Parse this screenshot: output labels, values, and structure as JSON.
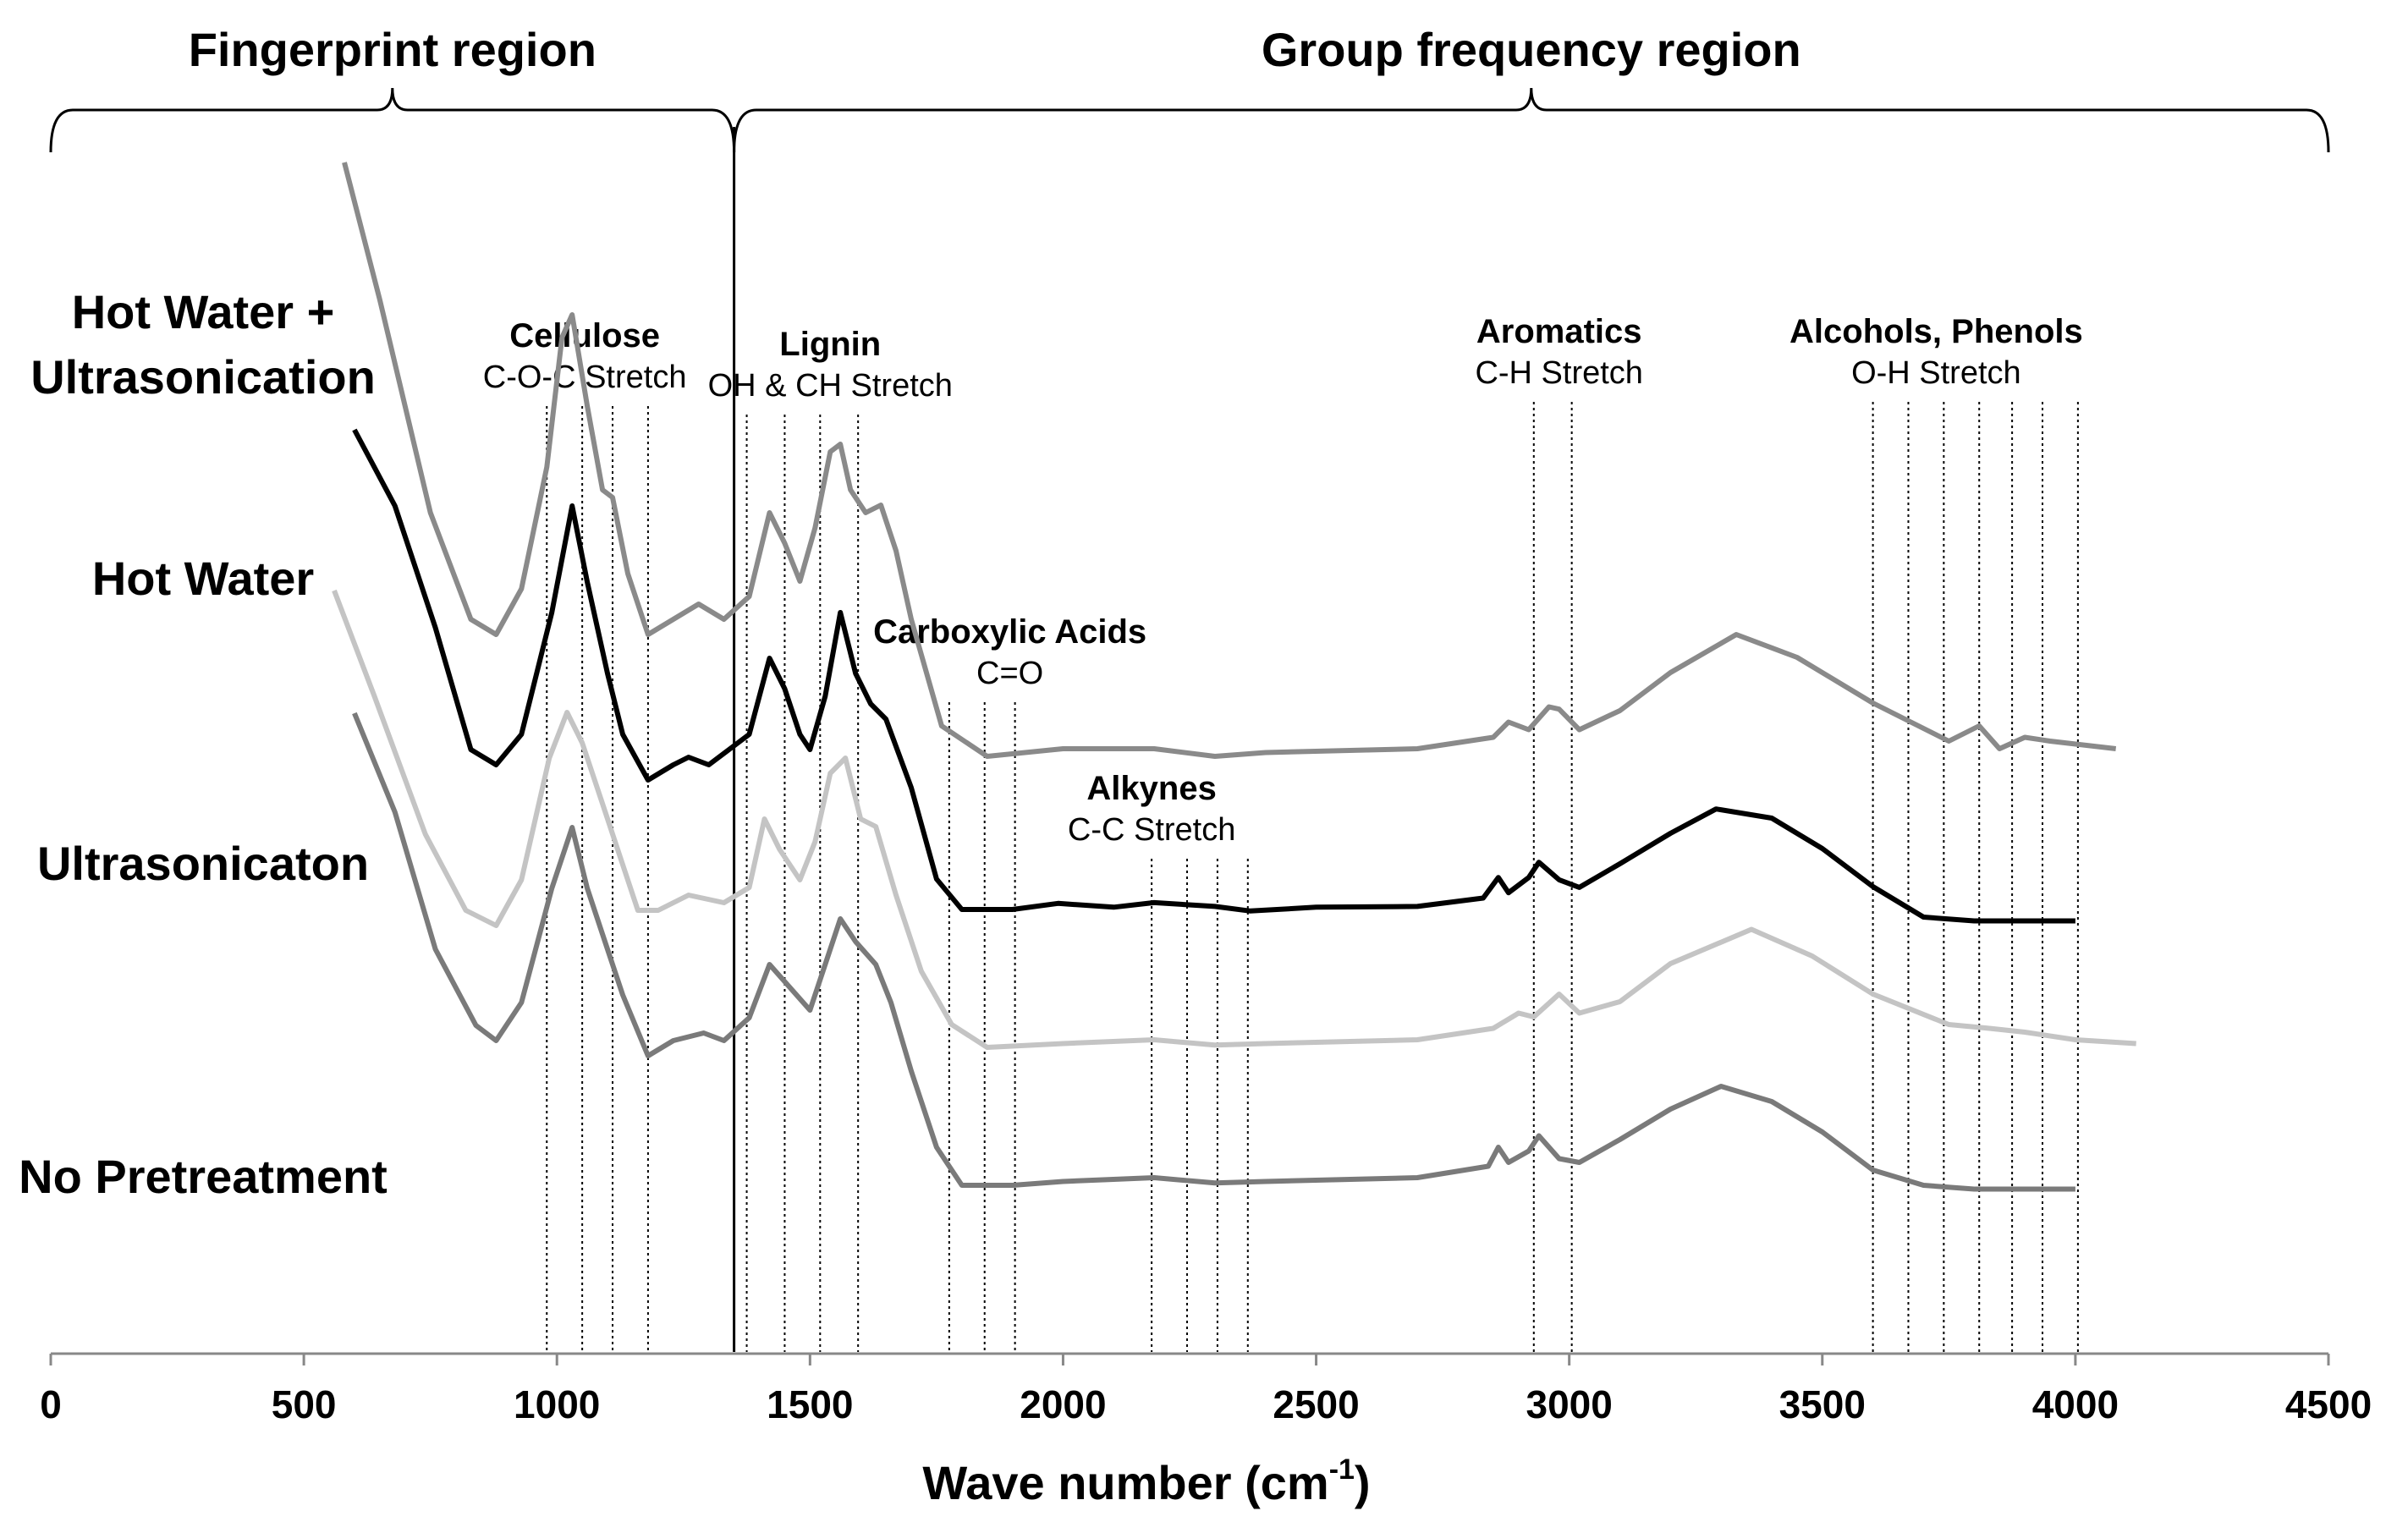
{
  "chart_data": {
    "type": "line",
    "xlabel": "Wave number (cm",
    "xlabel_sup": "-1",
    "xlabel_close": ")",
    "xlim": [
      0,
      4500
    ],
    "x_ticks": [
      0,
      500,
      1000,
      1500,
      2000,
      2500,
      3000,
      3500,
      4000,
      4500
    ],
    "regions": [
      {
        "label": "Fingerprint region",
        "x_start": 0,
        "x_end": 1350
      },
      {
        "label": "Group frequency region",
        "x_start": 1350,
        "x_end": 4500
      }
    ],
    "region_divider_x": 1350,
    "series": [
      {
        "name": "Hot Water + Ultrasonication",
        "label_lines": [
          "Hot Water +",
          "Ultrasonication"
        ],
        "color": "#8a8a8a",
        "offset": 3,
        "points": [
          [
            580,
            0.98
          ],
          [
            650,
            0.8
          ],
          [
            750,
            0.52
          ],
          [
            830,
            0.38
          ],
          [
            880,
            0.36
          ],
          [
            930,
            0.42
          ],
          [
            980,
            0.58
          ],
          [
            1010,
            0.75
          ],
          [
            1030,
            0.78
          ],
          [
            1060,
            0.66
          ],
          [
            1090,
            0.55
          ],
          [
            1110,
            0.54
          ],
          [
            1140,
            0.44
          ],
          [
            1180,
            0.36
          ],
          [
            1230,
            0.38
          ],
          [
            1280,
            0.4
          ],
          [
            1330,
            0.38
          ],
          [
            1380,
            0.41
          ],
          [
            1420,
            0.52
          ],
          [
            1450,
            0.48
          ],
          [
            1480,
            0.43
          ],
          [
            1510,
            0.5
          ],
          [
            1540,
            0.6
          ],
          [
            1560,
            0.61
          ],
          [
            1580,
            0.55
          ],
          [
            1610,
            0.52
          ],
          [
            1640,
            0.53
          ],
          [
            1670,
            0.47
          ],
          [
            1700,
            0.38
          ],
          [
            1760,
            0.24
          ],
          [
            1850,
            0.2
          ],
          [
            2000,
            0.21
          ],
          [
            2180,
            0.21
          ],
          [
            2300,
            0.2
          ],
          [
            2400,
            0.205
          ],
          [
            2700,
            0.21
          ],
          [
            2850,
            0.225
          ],
          [
            2880,
            0.245
          ],
          [
            2920,
            0.235
          ],
          [
            2960,
            0.265
          ],
          [
            2980,
            0.262
          ],
          [
            3020,
            0.235
          ],
          [
            3100,
            0.26
          ],
          [
            3200,
            0.31
          ],
          [
            3330,
            0.36
          ],
          [
            3450,
            0.33
          ],
          [
            3600,
            0.27
          ],
          [
            3750,
            0.22
          ],
          [
            3810,
            0.24
          ],
          [
            3850,
            0.21
          ],
          [
            3900,
            0.225
          ],
          [
            3950,
            0.22
          ],
          [
            4080,
            0.21
          ]
        ]
      },
      {
        "name": "Hot Water",
        "label_lines": [
          "Hot Water"
        ],
        "color": "#000000",
        "offset": 2,
        "points": [
          [
            600,
            0.82
          ],
          [
            680,
            0.72
          ],
          [
            760,
            0.56
          ],
          [
            830,
            0.4
          ],
          [
            880,
            0.38
          ],
          [
            930,
            0.42
          ],
          [
            990,
            0.58
          ],
          [
            1030,
            0.72
          ],
          [
            1060,
            0.62
          ],
          [
            1100,
            0.5
          ],
          [
            1130,
            0.42
          ],
          [
            1180,
            0.36
          ],
          [
            1230,
            0.38
          ],
          [
            1260,
            0.39
          ],
          [
            1300,
            0.38
          ],
          [
            1340,
            0.4
          ],
          [
            1380,
            0.42
          ],
          [
            1420,
            0.52
          ],
          [
            1450,
            0.48
          ],
          [
            1480,
            0.42
          ],
          [
            1500,
            0.4
          ],
          [
            1530,
            0.47
          ],
          [
            1560,
            0.58
          ],
          [
            1590,
            0.5
          ],
          [
            1620,
            0.46
          ],
          [
            1650,
            0.44
          ],
          [
            1700,
            0.35
          ],
          [
            1750,
            0.23
          ],
          [
            1800,
            0.19
          ],
          [
            1900,
            0.19
          ],
          [
            1990,
            0.198
          ],
          [
            2100,
            0.193
          ],
          [
            2180,
            0.199
          ],
          [
            2300,
            0.194
          ],
          [
            2370,
            0.188
          ],
          [
            2500,
            0.193
          ],
          [
            2700,
            0.194
          ],
          [
            2830,
            0.205
          ],
          [
            2860,
            0.232
          ],
          [
            2880,
            0.212
          ],
          [
            2920,
            0.232
          ],
          [
            2940,
            0.252
          ],
          [
            2980,
            0.229
          ],
          [
            3020,
            0.219
          ],
          [
            3100,
            0.25
          ],
          [
            3200,
            0.29
          ],
          [
            3290,
            0.322
          ],
          [
            3400,
            0.31
          ],
          [
            3500,
            0.27
          ],
          [
            3600,
            0.22
          ],
          [
            3700,
            0.18
          ],
          [
            3800,
            0.175
          ],
          [
            4000,
            0.175
          ]
        ]
      },
      {
        "name": "Ultrasonicaton",
        "label_lines": [
          "Ultrasonicaton"
        ],
        "color": "#c4c4c4",
        "offset": 1,
        "points": [
          [
            560,
            0.8
          ],
          [
            640,
            0.66
          ],
          [
            740,
            0.48
          ],
          [
            820,
            0.38
          ],
          [
            880,
            0.36
          ],
          [
            930,
            0.42
          ],
          [
            985,
            0.58
          ],
          [
            1020,
            0.64
          ],
          [
            1050,
            0.6
          ],
          [
            1090,
            0.52
          ],
          [
            1120,
            0.46
          ],
          [
            1160,
            0.38
          ],
          [
            1200,
            0.38
          ],
          [
            1260,
            0.4
          ],
          [
            1330,
            0.39
          ],
          [
            1380,
            0.41
          ],
          [
            1410,
            0.5
          ],
          [
            1440,
            0.46
          ],
          [
            1480,
            0.42
          ],
          [
            1510,
            0.47
          ],
          [
            1540,
            0.56
          ],
          [
            1570,
            0.58
          ],
          [
            1600,
            0.5
          ],
          [
            1630,
            0.49
          ],
          [
            1670,
            0.4
          ],
          [
            1720,
            0.3
          ],
          [
            1780,
            0.23
          ],
          [
            1850,
            0.2
          ],
          [
            2000,
            0.205
          ],
          [
            2180,
            0.21
          ],
          [
            2300,
            0.203
          ],
          [
            2400,
            0.205
          ],
          [
            2700,
            0.21
          ],
          [
            2850,
            0.225
          ],
          [
            2900,
            0.245
          ],
          [
            2930,
            0.24
          ],
          [
            2980,
            0.27
          ],
          [
            3020,
            0.245
          ],
          [
            3100,
            0.26
          ],
          [
            3200,
            0.31
          ],
          [
            3360,
            0.355
          ],
          [
            3480,
            0.32
          ],
          [
            3600,
            0.27
          ],
          [
            3750,
            0.23
          ],
          [
            3830,
            0.225
          ],
          [
            3900,
            0.22
          ],
          [
            4000,
            0.21
          ],
          [
            4120,
            0.205
          ]
        ]
      },
      {
        "name": "No Pretreatment",
        "label_lines": [
          "No Pretreatment"
        ],
        "color": "#7a7a7a",
        "offset": 0,
        "points": [
          [
            600,
            0.83
          ],
          [
            680,
            0.7
          ],
          [
            760,
            0.52
          ],
          [
            840,
            0.42
          ],
          [
            880,
            0.4
          ],
          [
            930,
            0.45
          ],
          [
            990,
            0.6
          ],
          [
            1030,
            0.68
          ],
          [
            1060,
            0.6
          ],
          [
            1100,
            0.52
          ],
          [
            1130,
            0.46
          ],
          [
            1180,
            0.38
          ],
          [
            1230,
            0.4
          ],
          [
            1290,
            0.41
          ],
          [
            1330,
            0.4
          ],
          [
            1380,
            0.43
          ],
          [
            1420,
            0.5
          ],
          [
            1460,
            0.47
          ],
          [
            1500,
            0.44
          ],
          [
            1530,
            0.5
          ],
          [
            1560,
            0.56
          ],
          [
            1590,
            0.53
          ],
          [
            1630,
            0.5
          ],
          [
            1660,
            0.45
          ],
          [
            1700,
            0.36
          ],
          [
            1750,
            0.26
          ],
          [
            1800,
            0.21
          ],
          [
            1900,
            0.21
          ],
          [
            2000,
            0.215
          ],
          [
            2180,
            0.22
          ],
          [
            2300,
            0.213
          ],
          [
            2400,
            0.215
          ],
          [
            2700,
            0.22
          ],
          [
            2840,
            0.235
          ],
          [
            2860,
            0.26
          ],
          [
            2880,
            0.24
          ],
          [
            2920,
            0.255
          ],
          [
            2940,
            0.275
          ],
          [
            2980,
            0.245
          ],
          [
            3020,
            0.24
          ],
          [
            3100,
            0.27
          ],
          [
            3200,
            0.31
          ],
          [
            3300,
            0.34
          ],
          [
            3400,
            0.32
          ],
          [
            3500,
            0.28
          ],
          [
            3600,
            0.23
          ],
          [
            3700,
            0.21
          ],
          [
            3800,
            0.205
          ],
          [
            4000,
            0.205
          ]
        ]
      }
    ],
    "annotations": [
      {
        "title": "Cellulose",
        "subtitle": "C-O-C Stretch",
        "label_x": 1055,
        "lines_x": [
          980,
          1050,
          1110,
          1180
        ]
      },
      {
        "title": "Lignin",
        "subtitle": "OH & CH Stretch",
        "label_x": 1540,
        "lines_x": [
          1375,
          1450,
          1520,
          1595
        ]
      },
      {
        "title": "Carboxylic Acids",
        "subtitle": "C=O",
        "label_x": 1895,
        "lines_x": [
          1775,
          1845,
          1905
        ]
      },
      {
        "title": "Alkynes",
        "subtitle": "C-C Stretch",
        "label_x": 2175,
        "lines_x": [
          2175,
          2245,
          2305,
          2365
        ]
      },
      {
        "title": "Aromatics",
        "subtitle": "C-H Stretch",
        "label_x": 2980,
        "lines_x": [
          2930,
          3005
        ]
      },
      {
        "title": "Alcohols, Phenols",
        "subtitle": "O-H Stretch",
        "label_x": 3725,
        "lines_x": [
          3600,
          3670,
          3740,
          3810,
          3875,
          3935,
          4005
        ]
      }
    ]
  }
}
